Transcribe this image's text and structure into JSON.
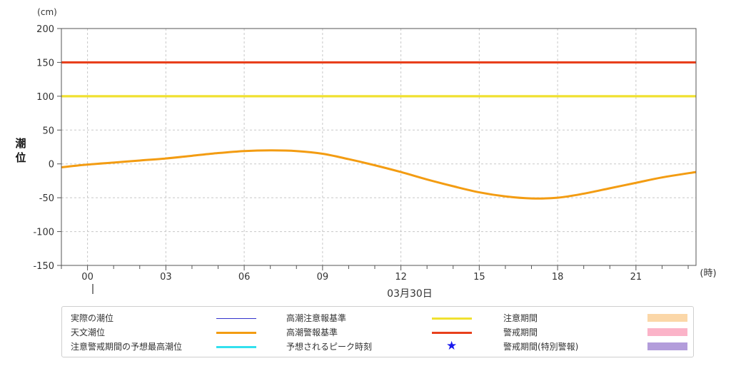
{
  "chart_data": {
    "type": "line",
    "yunit": "(cm)",
    "xunit": "(時)",
    "ylabel": "潮位",
    "date_label": "03月30日",
    "ylim": [
      -150,
      200
    ],
    "yticks": [
      200,
      150,
      100,
      50,
      0,
      -50,
      -100,
      -150
    ],
    "xlim": [
      -1,
      23.3
    ],
    "xticks": [
      0,
      3,
      6,
      9,
      12,
      15,
      18,
      21
    ],
    "xtick_labels": [
      "00",
      "03",
      "06",
      "09",
      "12",
      "15",
      "18",
      "21"
    ],
    "grid": true,
    "series": [
      {
        "name": "天文潮位",
        "color": "#f39c12",
        "x": [
          -1,
          0,
          1,
          2,
          3,
          4,
          5,
          6,
          7,
          8,
          9,
          10,
          11,
          12,
          13,
          14,
          15,
          16,
          17,
          18,
          19,
          20,
          21,
          22,
          23.3
        ],
        "y": [
          -5,
          -1,
          2,
          5,
          8,
          12,
          16,
          19,
          20,
          19,
          15,
          7,
          -2,
          -12,
          -23,
          -33,
          -42,
          -48,
          -51,
          -50,
          -44,
          -36,
          -28,
          -20,
          -12
        ]
      },
      {
        "name": "高潮注意報基準",
        "color": "#f0e130",
        "y_const": 100
      },
      {
        "name": "高潮警報基準",
        "color": "#e8401c",
        "y_const": 150
      }
    ]
  },
  "legend": {
    "items": [
      {
        "label": "実際の潮位",
        "kind": "line",
        "color": "#3333cc",
        "thin": true
      },
      {
        "label": "天文潮位",
        "kind": "line",
        "color": "#f39c12"
      },
      {
        "label": "注意警戒期間の予想最高潮位",
        "kind": "line",
        "color": "#33e0ee"
      },
      {
        "label": "高潮注意報基準",
        "kind": "line",
        "color": "#f0e130"
      },
      {
        "label": "高潮警報基準",
        "kind": "line",
        "color": "#e8401c"
      },
      {
        "label": "予想されるピーク時刻",
        "kind": "star",
        "color": "#1a1aee",
        "symbol": "★"
      },
      {
        "label": "注意期間",
        "kind": "box",
        "color": "#fbd7a8"
      },
      {
        "label": "警戒期間",
        "kind": "box",
        "color": "#fbb3c8"
      },
      {
        "label": "警戒期間(特別警報)",
        "kind": "box",
        "color": "#b39ddb"
      }
    ]
  }
}
